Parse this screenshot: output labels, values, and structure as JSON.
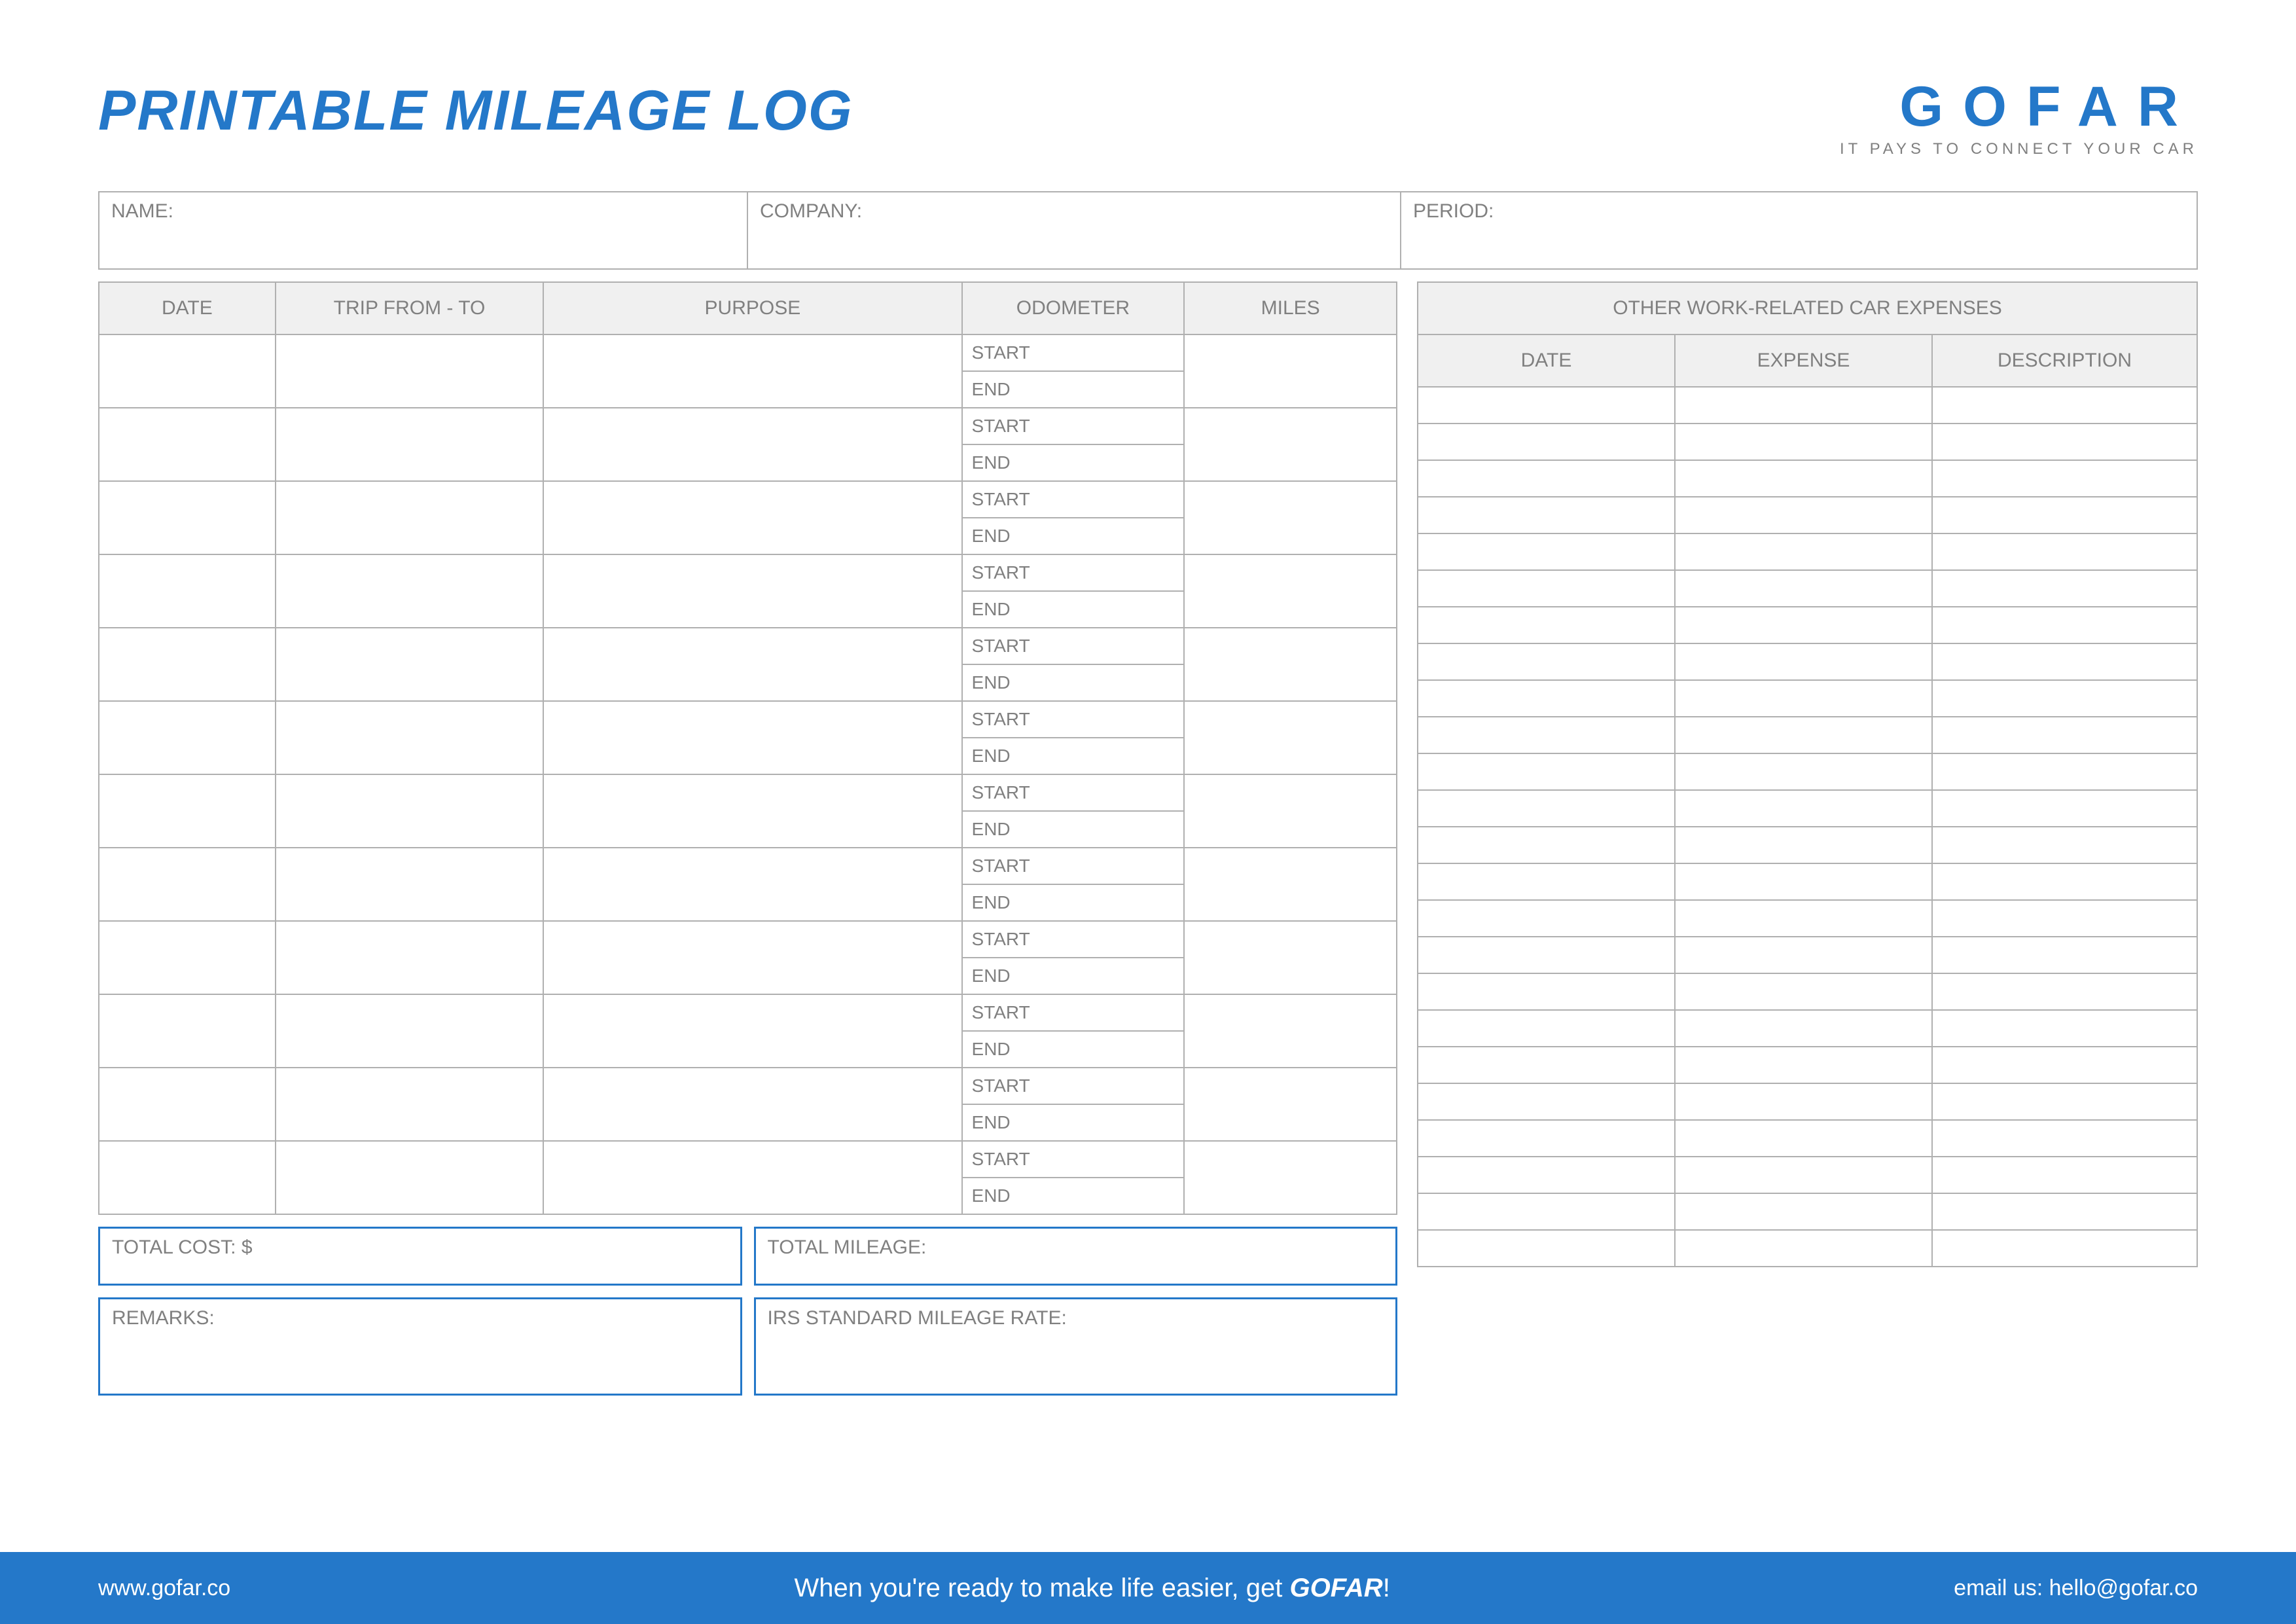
{
  "title": "PRINTABLE MILEAGE LOG",
  "brand": {
    "name": "GOFAR",
    "tagline": "IT PAYS TO CONNECT YOUR CAR"
  },
  "colors": {
    "primary": "#2478c9",
    "border": "#b0b0b0",
    "text": "#808080",
    "header_bg": "#f0f0f0",
    "white": "#ffffff"
  },
  "info_fields": {
    "name": "NAME:",
    "company": "COMPANY:",
    "period": "PERIOD:"
  },
  "mileage_table": {
    "columns": {
      "date": "DATE",
      "trip": "TRIP FROM - TO",
      "purpose": "PURPOSE",
      "odometer": "ODOMETER",
      "miles": "MILES"
    },
    "odo_labels": {
      "start": "START",
      "end": "END"
    },
    "row_count": 12
  },
  "summary": {
    "total_cost": "TOTAL COST: $",
    "total_mileage": "TOTAL MILEAGE:",
    "remarks": "REMARKS:",
    "irs_rate": "IRS STANDARD MILEAGE RATE:"
  },
  "expenses_table": {
    "title": "OTHER WORK-RELATED CAR EXPENSES",
    "columns": {
      "date": "DATE",
      "expense": "EXPENSE",
      "description": "DESCRIPTION"
    },
    "row_count": 24
  },
  "footer": {
    "url": "www.gofar.co",
    "cta_prefix": "When you're ready to make life easier, get ",
    "cta_brand": "GOFAR",
    "cta_suffix": "!",
    "email_label": "email us: hello@gofar.co"
  }
}
